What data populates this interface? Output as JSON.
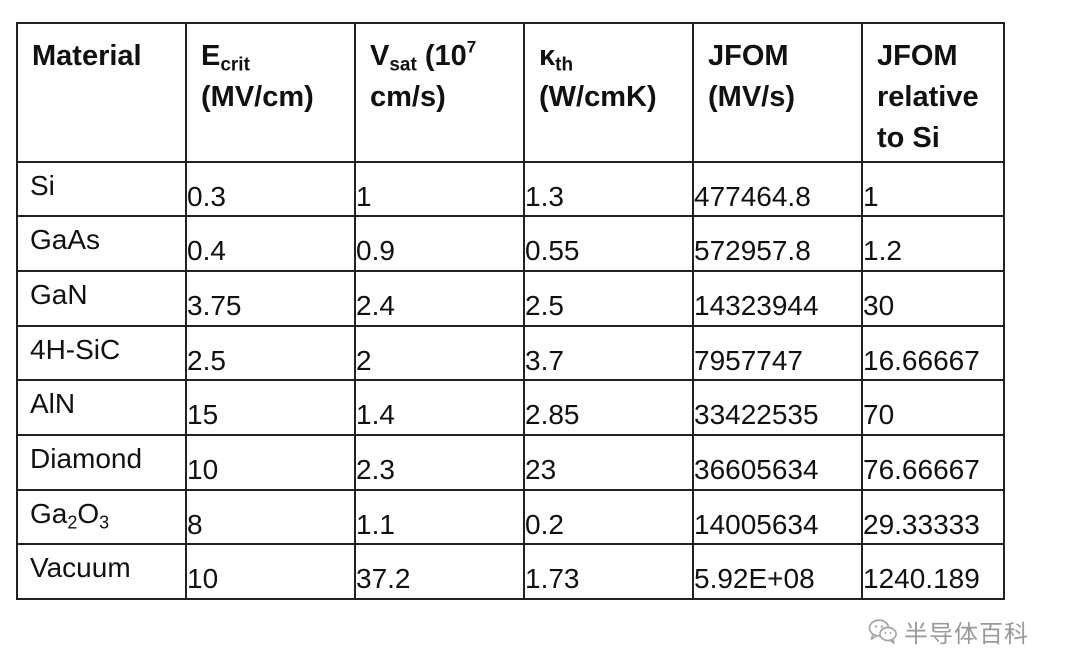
{
  "headers": {
    "material": "Material",
    "ecrit_main": "E",
    "ecrit_sub": "crit",
    "ecrit_unit": "(MV/cm)",
    "vsat_main": "V",
    "vsat_sub": "sat",
    "vsat_paren": " (10",
    "vsat_sup": "7",
    "vsat_unit": "cm/s)",
    "kth_main": "κ",
    "kth_sub": "th",
    "kth_unit": "(W/cmK)",
    "jfom_line1": "JFOM",
    "jfom_line2": "(MV/s)",
    "rel_line1": "JFOM",
    "rel_line2": "relative",
    "rel_line3": "to Si"
  },
  "rows": [
    {
      "material": "Si",
      "ecrit": "0.3",
      "vsat": "1",
      "kth": "1.3",
      "jfom": "477464.8",
      "rel": "1"
    },
    {
      "material": "GaAs",
      "ecrit": "0.4",
      "vsat": "0.9",
      "kth": "0.55",
      "jfom": "572957.8",
      "rel": "1.2"
    },
    {
      "material": "GaN",
      "ecrit": "3.75",
      "vsat": "2.4",
      "kth": "2.5",
      "jfom": "14323944",
      "rel": "30"
    },
    {
      "material": "4H-SiC",
      "ecrit": "2.5",
      "vsat": "2",
      "kth": "3.7",
      "jfom": "7957747",
      "rel": "16.66667"
    },
    {
      "material": "AlN",
      "ecrit": "15",
      "vsat": "1.4",
      "kth": "2.85",
      "jfom": "33422535",
      "rel": "70"
    },
    {
      "material": "Diamond",
      "ecrit": "10",
      "vsat": "2.3",
      "kth": "23",
      "jfom": "36605634",
      "rel": "76.66667"
    },
    {
      "material_main": "Ga",
      "material_sub1": "2",
      "material_mid": "O",
      "material_sub2": "3",
      "ecrit": "8",
      "vsat": "1.1",
      "kth": "0.2",
      "jfom": "14005634",
      "rel": "29.33333"
    },
    {
      "material": "Vacuum",
      "ecrit": "10",
      "vsat": "37.2",
      "kth": "1.73",
      "jfom": "5.92E+08",
      "rel": "1240.189"
    }
  ],
  "watermark": {
    "text": "半导体百科",
    "icon": "wechat-icon",
    "color": "#9a9a9a"
  }
}
